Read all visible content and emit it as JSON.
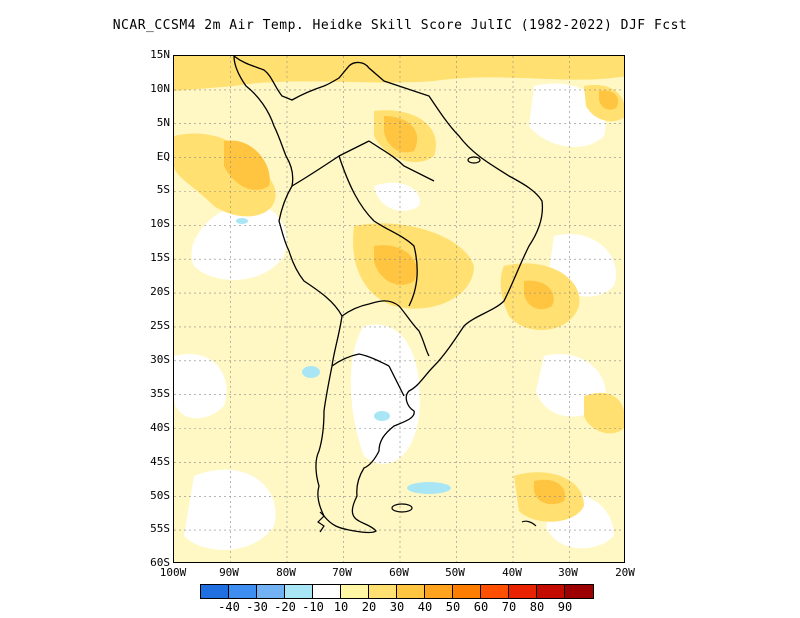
{
  "title": "NCAR_CCSM4  2m Air Temp. Heidke Skill Score JulIC (1982-2022) DJF Fcst",
  "map": {
    "region": "South America",
    "lon_range": [
      -100,
      -20
    ],
    "lat_range": [
      -60,
      15
    ],
    "lat_labels": [
      "15N",
      "10N",
      "5N",
      "EQ",
      "5S",
      "10S",
      "15S",
      "20S",
      "25S",
      "30S",
      "35S",
      "40S",
      "45S",
      "50S",
      "55S",
      "60S"
    ],
    "lon_labels": [
      "100W",
      "90W",
      "80W",
      "70W",
      "60W",
      "50W",
      "40W",
      "30W",
      "20W"
    ],
    "grid": "dotted"
  },
  "colorbar": {
    "colors": [
      "#1f6fe0",
      "#3d8ef0",
      "#72b2f4",
      "#a9e6f5",
      "#ffffff",
      "#fff6a6",
      "#ffe070",
      "#ffc440",
      "#ffa21e",
      "#ff7e00",
      "#ff4f00",
      "#e92300",
      "#c40b00",
      "#9c0000"
    ],
    "labels": [
      "-40",
      "-30",
      "-20",
      "-10",
      "10",
      "20",
      "30",
      "40",
      "50",
      "60",
      "70",
      "80",
      "90"
    ]
  }
}
